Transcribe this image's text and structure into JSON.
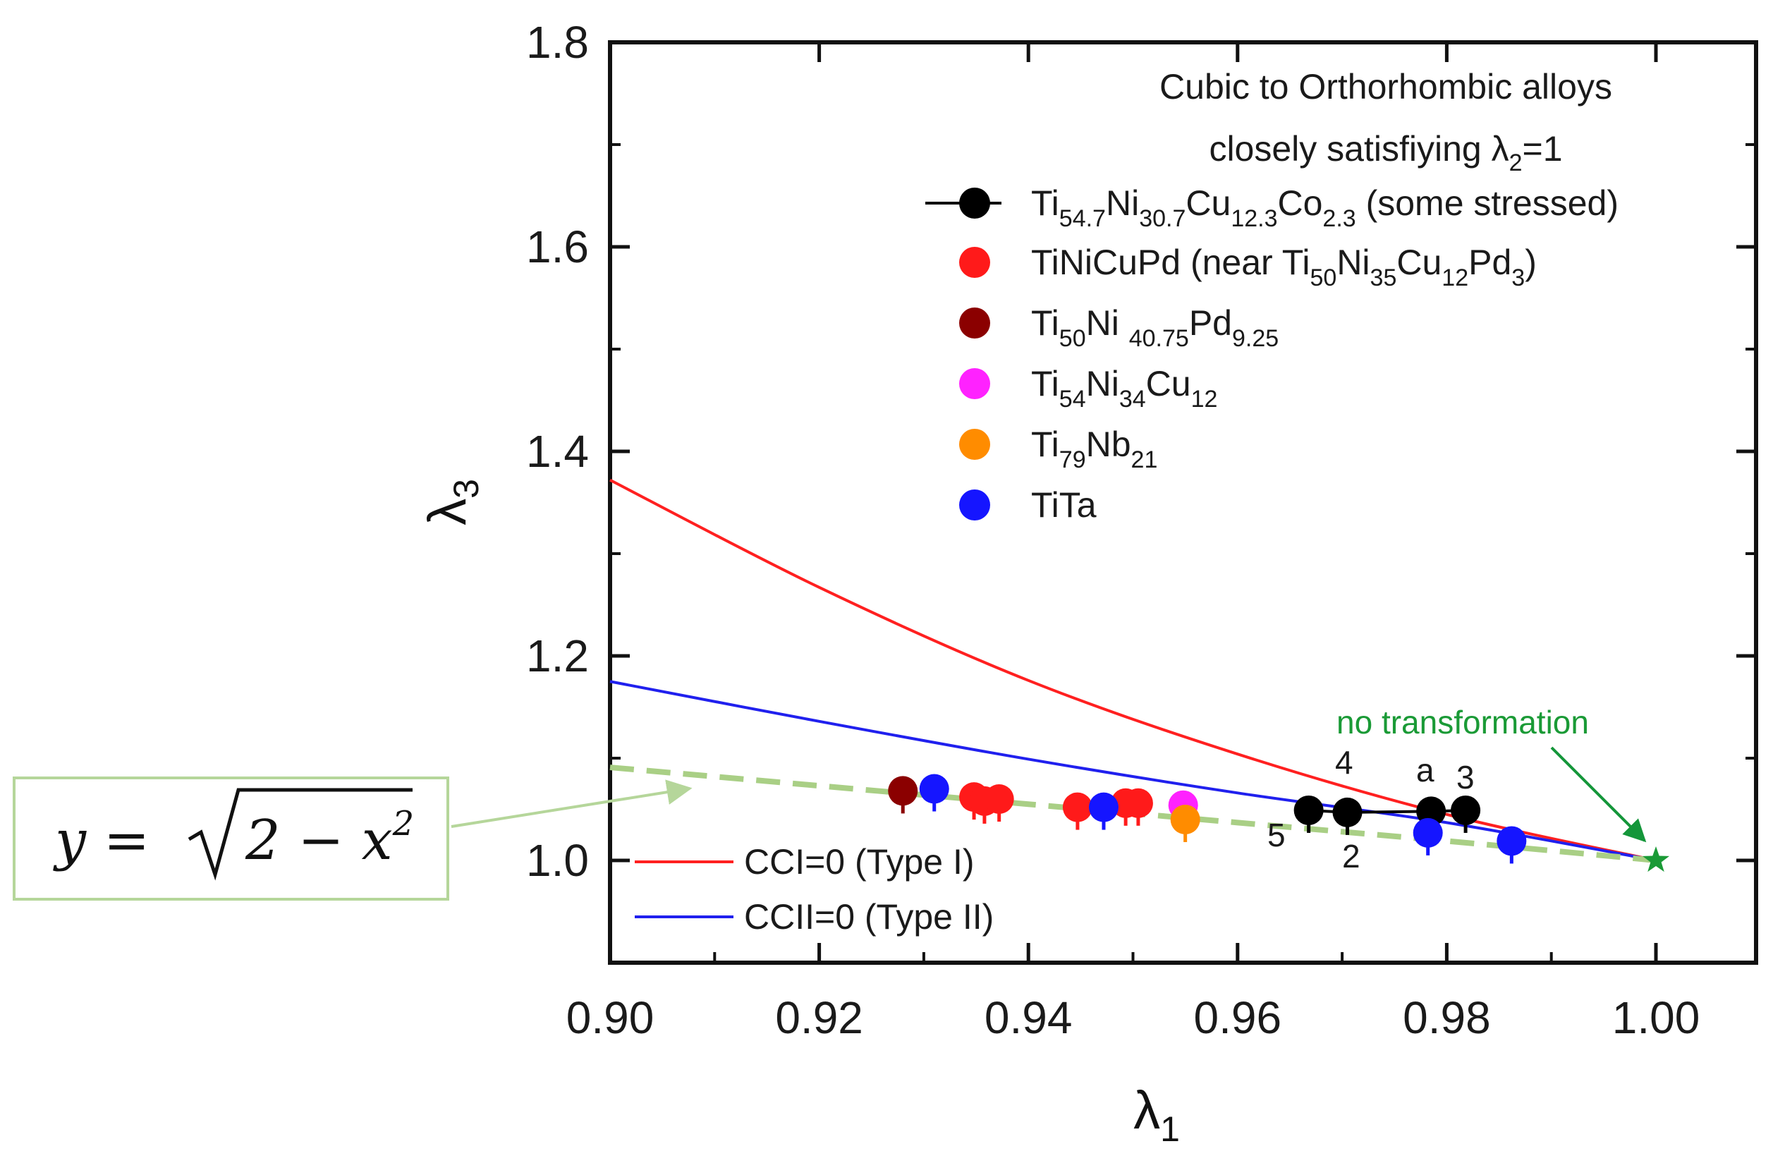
{
  "chart_data": {
    "type": "scatter",
    "xlabel": "λ1",
    "ylabel": "λ3",
    "xlim": [
      0.9,
      1.01
    ],
    "ylim": [
      0.9,
      1.8
    ],
    "xticks": [
      "0.90",
      "0.92",
      "0.94",
      "0.96",
      "0.98",
      "1.00"
    ],
    "yticks": [
      "1.0",
      "1.2",
      "1.4",
      "1.6",
      "1.8"
    ],
    "xtick_values": [
      0.9,
      0.92,
      0.94,
      0.96,
      0.98,
      1.0
    ],
    "ytick_values": [
      1.0,
      1.2,
      1.4,
      1.6,
      1.8
    ],
    "legend_title": [
      "Cubic to Orthorhombic alloys",
      "closely satisfiying λ2=1"
    ],
    "series": [
      {
        "name": "Ti54.7Ni30.7Cu12.3Co2.3 (some stressed)",
        "color": "#000000",
        "connected": true,
        "points": [
          [
            0.9668,
            1.049
          ],
          [
            0.9705,
            1.047
          ],
          [
            0.9785,
            1.048
          ],
          [
            0.9818,
            1.049
          ]
        ],
        "labels": [
          "5",
          "4",
          "a",
          "3"
        ]
      },
      {
        "name": "TiNiCuPd (near Ti50Ni35Cu12Pd3)",
        "color": "#ff1a1a",
        "points": [
          [
            0.9348,
            1.062
          ],
          [
            0.9358,
            1.058
          ],
          [
            0.9372,
            1.06
          ],
          [
            0.9447,
            1.052
          ],
          [
            0.9493,
            1.056
          ],
          [
            0.9505,
            1.056
          ]
        ]
      },
      {
        "name": "Ti50Ni 40.75Pd9.25",
        "color": "#8b0000",
        "points": [
          [
            0.928,
            1.068
          ]
        ]
      },
      {
        "name": "Ti54Ni34Cu12",
        "color": "#ff22ff",
        "points": [
          [
            0.9548,
            1.054
          ]
        ]
      },
      {
        "name": "Ti79Nb21",
        "color": "#ff8c00",
        "points": [
          [
            0.955,
            1.04
          ]
        ]
      },
      {
        "name": "TiTa",
        "color": "#1515ff",
        "points": [
          [
            0.931,
            1.07
          ],
          [
            0.9472,
            1.052
          ],
          [
            0.9782,
            1.027
          ],
          [
            0.9862,
            1.019
          ]
        ]
      }
    ],
    "curves": [
      {
        "name": "CCI=0 (Type I)",
        "color": "#ff2020",
        "x": [
          0.9,
          0.92,
          0.94,
          0.96,
          0.98,
          1.0
        ],
        "y": [
          1.372,
          1.267,
          1.176,
          1.104,
          1.045,
          1.0
        ]
      },
      {
        "name": "CCII=0 (Type II)",
        "color": "#2020ee",
        "x": [
          0.9,
          0.92,
          0.94,
          0.96,
          0.98,
          1.0
        ],
        "y": [
          1.175,
          1.136,
          1.099,
          1.066,
          1.037,
          1.0
        ]
      },
      {
        "name": "y = sqrt(2 - x^2)",
        "color": "#a9cf85",
        "style": "dashed",
        "x": [
          0.9,
          0.92,
          0.94,
          0.96,
          0.98,
          1.0
        ],
        "y": [
          1.091,
          1.073,
          1.055,
          1.037,
          1.019,
          1.0
        ]
      }
    ],
    "annotations": {
      "no_transformation": "no transformation",
      "point_labels": [
        "4",
        "a",
        "3",
        "5",
        "2"
      ],
      "formula": "y = √2 − x²"
    }
  },
  "legend": {
    "s1": {
      "a": "Ti",
      "b": "54.7",
      "c": "Ni",
      "d": "30.7",
      "e": "Cu",
      "f": "12.3",
      "g": "Co",
      "h": "2.3",
      "i": " (some stressed)"
    },
    "s2": {
      "a": "TiNiCuPd (near Ti",
      "b": "50",
      "c": "Ni",
      "d": "35",
      "e": "Cu",
      "f": "12",
      "g": "Pd",
      "h": "3",
      "i": ")"
    },
    "s3": {
      "a": "Ti",
      "b": "50",
      "c": "Ni ",
      "d": "40.75",
      "e": "Pd",
      "f": "9.25"
    },
    "s4": {
      "a": "Ti",
      "b": "54",
      "c": "Ni",
      "d": "34",
      "e": "Cu",
      "f": "12"
    },
    "s5": {
      "a": "Ti",
      "b": "79",
      "c": "Nb",
      "d": "21"
    },
    "s6": {
      "a": "TiTa"
    },
    "title1": "Cubic to Orthorhombic alloys",
    "title2a": "closely satisfiying λ",
    "title2b": "2",
    "title2c": "=1",
    "cci": "CCI=0 (Type I)",
    "ccii": "CCII=0 (Type II)"
  },
  "axes": {
    "xlabel_main": "λ",
    "xlabel_sub": "1",
    "ylabel_main": "λ",
    "ylabel_sub": "3"
  },
  "formula": {
    "lhs": "y = ",
    "rad": "2 − x",
    "sup": "2"
  }
}
